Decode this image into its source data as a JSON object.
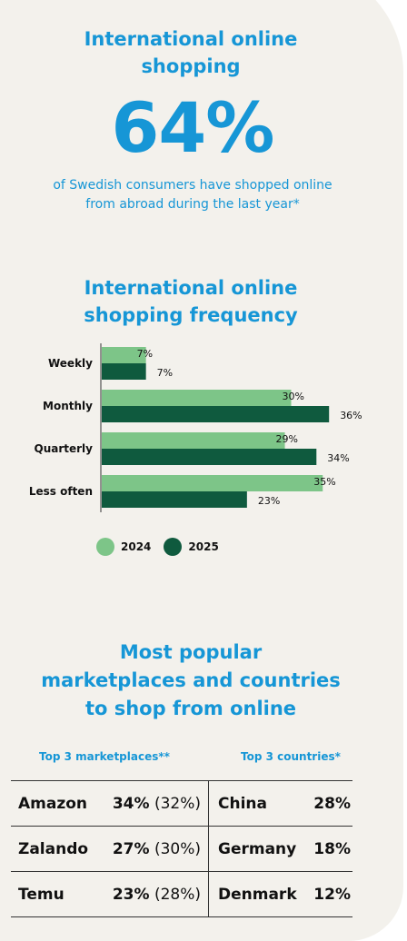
{
  "top": {
    "title": "International online\nshopping",
    "big_number": "64%",
    "subtitle": "of Swedish consumers have shopped online\nfrom abroad during the last year*"
  },
  "colors": {
    "accent_blue": "#1696d6",
    "series_2024": "#7dc588",
    "series_2025": "#0f5a3e",
    "background": "#f3f1ec"
  },
  "chart_data": {
    "type": "bar",
    "orientation": "horizontal",
    "title": "International online\nshopping frequency",
    "categories": [
      "Weekly",
      "Monthly",
      "Quarterly",
      "Less often"
    ],
    "series": [
      {
        "name": "2024",
        "values": [
          7,
          30,
          29,
          35
        ],
        "labels": [
          "7%",
          "30%",
          "29%",
          "35%"
        ]
      },
      {
        "name": "2025",
        "values": [
          7,
          36,
          34,
          23
        ],
        "labels": [
          "7%",
          "36%",
          "34%",
          "23%"
        ]
      }
    ],
    "xlim": [
      0,
      40
    ],
    "grid": false,
    "legend": "bottom-left"
  },
  "section3": {
    "title": "Most popular\nmarketplaces and countries\nto shop from online",
    "col_marketplaces": "Top 3 marketplaces**",
    "col_countries": "Top 3 countries*",
    "rows": [
      {
        "marketplace": "Amazon",
        "mk_value": "34%",
        "mk_prev": "(32%)",
        "country": "China",
        "ct_value": "28%"
      },
      {
        "marketplace": "Zalando",
        "mk_value": "27%",
        "mk_prev": "(30%)",
        "country": "Germany",
        "ct_value": "18%"
      },
      {
        "marketplace": "Temu",
        "mk_value": "23%",
        "mk_prev": "(28%)",
        "country": "Denmark",
        "ct_value": "12%"
      }
    ]
  }
}
